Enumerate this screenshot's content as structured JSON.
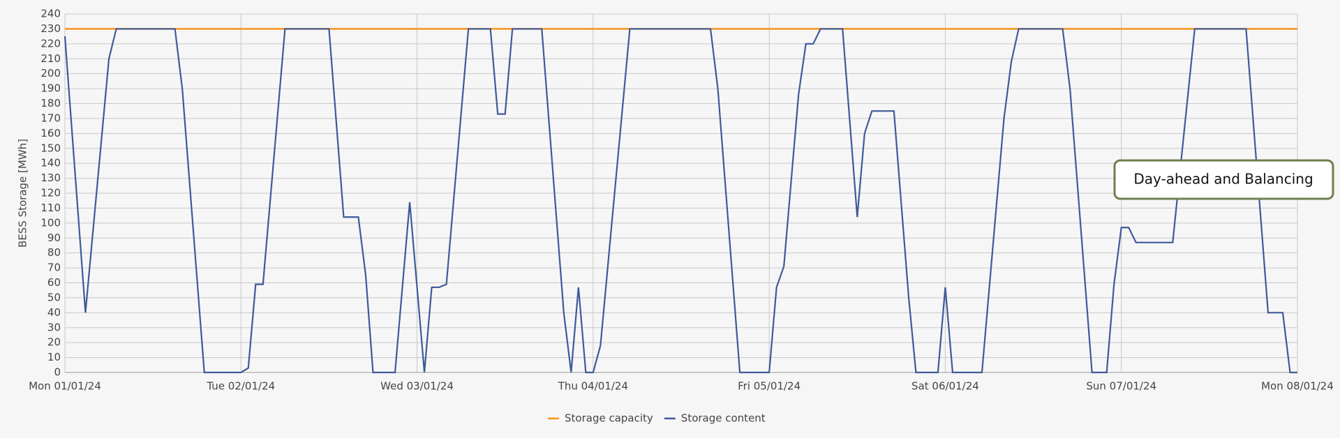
{
  "chart_data": {
    "type": "line",
    "y_label": "BESS Storage [MWh]",
    "annotation": "Day-ahead and Balancing",
    "xlim": [
      0,
      168
    ],
    "xticks": [
      {
        "value": 0,
        "label": "Mon 01/01/24"
      },
      {
        "value": 24,
        "label": "Tue 02/01/24"
      },
      {
        "value": 48,
        "label": "Wed 03/01/24"
      },
      {
        "value": 72,
        "label": "Thu 04/01/24"
      },
      {
        "value": 96,
        "label": "Fri 05/01/24"
      },
      {
        "value": 120,
        "label": "Sat 06/01/24"
      },
      {
        "value": 144,
        "label": "Sun 07/01/24"
      },
      {
        "value": 168,
        "label": "Mon 08/01/24"
      }
    ],
    "ylim": [
      0,
      240
    ],
    "yticks": [
      0,
      10,
      20,
      30,
      40,
      50,
      60,
      70,
      80,
      90,
      100,
      110,
      120,
      130,
      140,
      150,
      160,
      170,
      180,
      190,
      200,
      210,
      220,
      230,
      240
    ],
    "grid": true,
    "series": [
      {
        "name": "Storage capacity",
        "color": "#f7941d",
        "x": [
          0,
          168
        ],
        "values": [
          230,
          230
        ]
      },
      {
        "name": "Storage content",
        "color": "#3d5a99",
        "x": [
          0,
          2.8,
          6,
          7,
          15,
          16,
          19,
          24,
          25,
          26,
          27,
          30,
          36,
          38,
          40,
          41,
          42,
          45,
          47,
          49,
          50,
          51,
          52,
          55,
          58,
          59,
          60,
          61,
          65,
          68,
          69,
          70,
          71,
          72,
          73,
          77,
          88,
          89,
          92,
          96,
          97,
          98,
          100,
          101,
          102,
          103,
          106,
          108,
          109,
          110,
          113,
          115,
          116,
          119,
          120,
          121,
          125,
          128,
          129,
          130,
          136,
          137,
          140,
          142,
          143,
          144,
          145,
          146,
          151,
          154,
          161,
          164,
          166,
          167,
          168
        ],
        "values": [
          225,
          40,
          210,
          230,
          230,
          190,
          0,
          0,
          3,
          59,
          59,
          230,
          230,
          104,
          104,
          65,
          0,
          0,
          114,
          0,
          57,
          57,
          59,
          230,
          230,
          173,
          173,
          230,
          230,
          40,
          0,
          57,
          0,
          0,
          18,
          230,
          230,
          190,
          0,
          0,
          57,
          71,
          186,
          220,
          220,
          230,
          230,
          104,
          160,
          175,
          175,
          51,
          0,
          0,
          57,
          0,
          0,
          170,
          208,
          230,
          230,
          190,
          0,
          0,
          59,
          97,
          97,
          87,
          87,
          230,
          230,
          40,
          40,
          0,
          0
        ]
      }
    ]
  }
}
